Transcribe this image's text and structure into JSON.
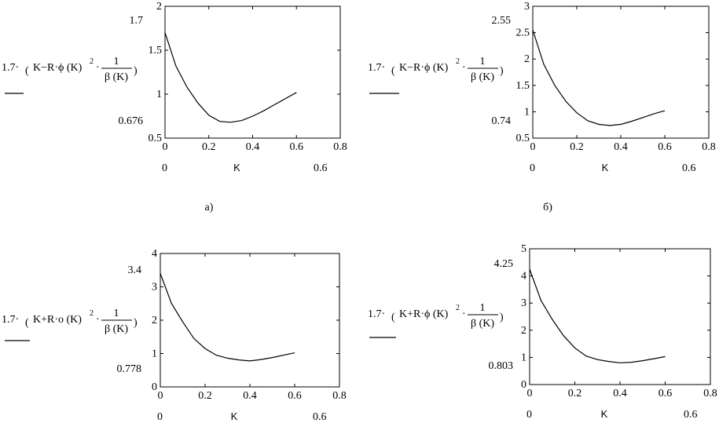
{
  "chart_data": [
    {
      "type": "line",
      "xlabel": "K",
      "xlim": [
        0,
        0.8
      ],
      "ylim": [
        0.5,
        2
      ],
      "xticks": [
        "0",
        "0.2",
        "0.4",
        "0.6",
        "0.8"
      ],
      "yticks": [
        "0.5",
        "1",
        "1.5",
        "2"
      ],
      "ymax_label": "1.7",
      "ymin_label": "0.676",
      "xmin_label": "0",
      "xmax_label": "0.6",
      "expr": {
        "prefix": "1.7·",
        "main": "K−R·ϕ (K)",
        "exp": "2",
        "mid": "·",
        "num": "1",
        "den": "β (K)"
      },
      "caption": "а)",
      "x": [
        0,
        0.05,
        0.1,
        0.15,
        0.2,
        0.25,
        0.3,
        0.35,
        0.4,
        0.45,
        0.5,
        0.55,
        0.6
      ],
      "y": [
        1.7,
        1.32,
        1.08,
        0.9,
        0.76,
        0.69,
        0.68,
        0.7,
        0.75,
        0.81,
        0.88,
        0.95,
        1.02
      ]
    },
    {
      "type": "line",
      "xlabel": "K",
      "xlim": [
        0,
        0.8
      ],
      "ylim": [
        0.5,
        3
      ],
      "xticks": [
        "0",
        "0.2",
        "0.4",
        "0.6",
        "0.8"
      ],
      "yticks": [
        "0.5",
        "1",
        "1.5",
        "2",
        "2.5",
        "3"
      ],
      "ymax_label": "2.55",
      "ymin_label": "0.74",
      "xmin_label": "0",
      "xmax_label": "0.6",
      "expr": {
        "prefix": "1.7·",
        "main": "K−R·ϕ (K)",
        "exp": "2",
        "mid": "·",
        "num": "1",
        "den": "β (K)"
      },
      "caption": "б)",
      "x": [
        0,
        0.05,
        0.1,
        0.15,
        0.2,
        0.25,
        0.3,
        0.35,
        0.4,
        0.45,
        0.5,
        0.55,
        0.6
      ],
      "y": [
        2.55,
        1.9,
        1.5,
        1.2,
        0.98,
        0.83,
        0.76,
        0.74,
        0.76,
        0.82,
        0.89,
        0.96,
        1.02
      ]
    },
    {
      "type": "line",
      "xlabel": "K",
      "xlim": [
        0,
        0.8
      ],
      "ylim": [
        0,
        4
      ],
      "xticks": [
        "0",
        "0.2",
        "0.4",
        "0.6",
        "0.8"
      ],
      "yticks": [
        "0",
        "1",
        "2",
        "3",
        "4"
      ],
      "ymax_label": "3.4",
      "ymin_label": "0.778",
      "xmin_label": "0",
      "xmax_label": "0.6",
      "expr": {
        "prefix": "1.7·",
        "main": "K+R·ο (K)",
        "exp": "2",
        "mid": "·",
        "num": "1",
        "den": "β (K)"
      },
      "caption": "",
      "x": [
        0,
        0.05,
        0.1,
        0.15,
        0.2,
        0.25,
        0.3,
        0.35,
        0.4,
        0.45,
        0.5,
        0.55,
        0.6
      ],
      "y": [
        3.4,
        2.5,
        1.95,
        1.45,
        1.15,
        0.95,
        0.86,
        0.81,
        0.78,
        0.82,
        0.88,
        0.95,
        1.02
      ]
    },
    {
      "type": "line",
      "xlabel": "K",
      "xlim": [
        0,
        0.8
      ],
      "ylim": [
        0,
        5
      ],
      "xticks": [
        "0",
        "0.2",
        "0.4",
        "0.6",
        "0.8"
      ],
      "yticks": [
        "0",
        "1",
        "2",
        "3",
        "4",
        "5"
      ],
      "ymax_label": "4.25",
      "ymin_label": "0.803",
      "xmin_label": "0",
      "xmax_label": "0.6",
      "expr": {
        "prefix": "1.7·",
        "main": "K+R·ϕ (K)",
        "exp": "2",
        "mid": "·",
        "num": "1",
        "den": "β (K)"
      },
      "caption": "",
      "x": [
        0,
        0.05,
        0.1,
        0.15,
        0.2,
        0.25,
        0.3,
        0.35,
        0.4,
        0.45,
        0.5,
        0.55,
        0.6
      ],
      "y": [
        4.25,
        3.1,
        2.4,
        1.8,
        1.35,
        1.05,
        0.92,
        0.85,
        0.8,
        0.82,
        0.88,
        0.95,
        1.03
      ]
    }
  ]
}
